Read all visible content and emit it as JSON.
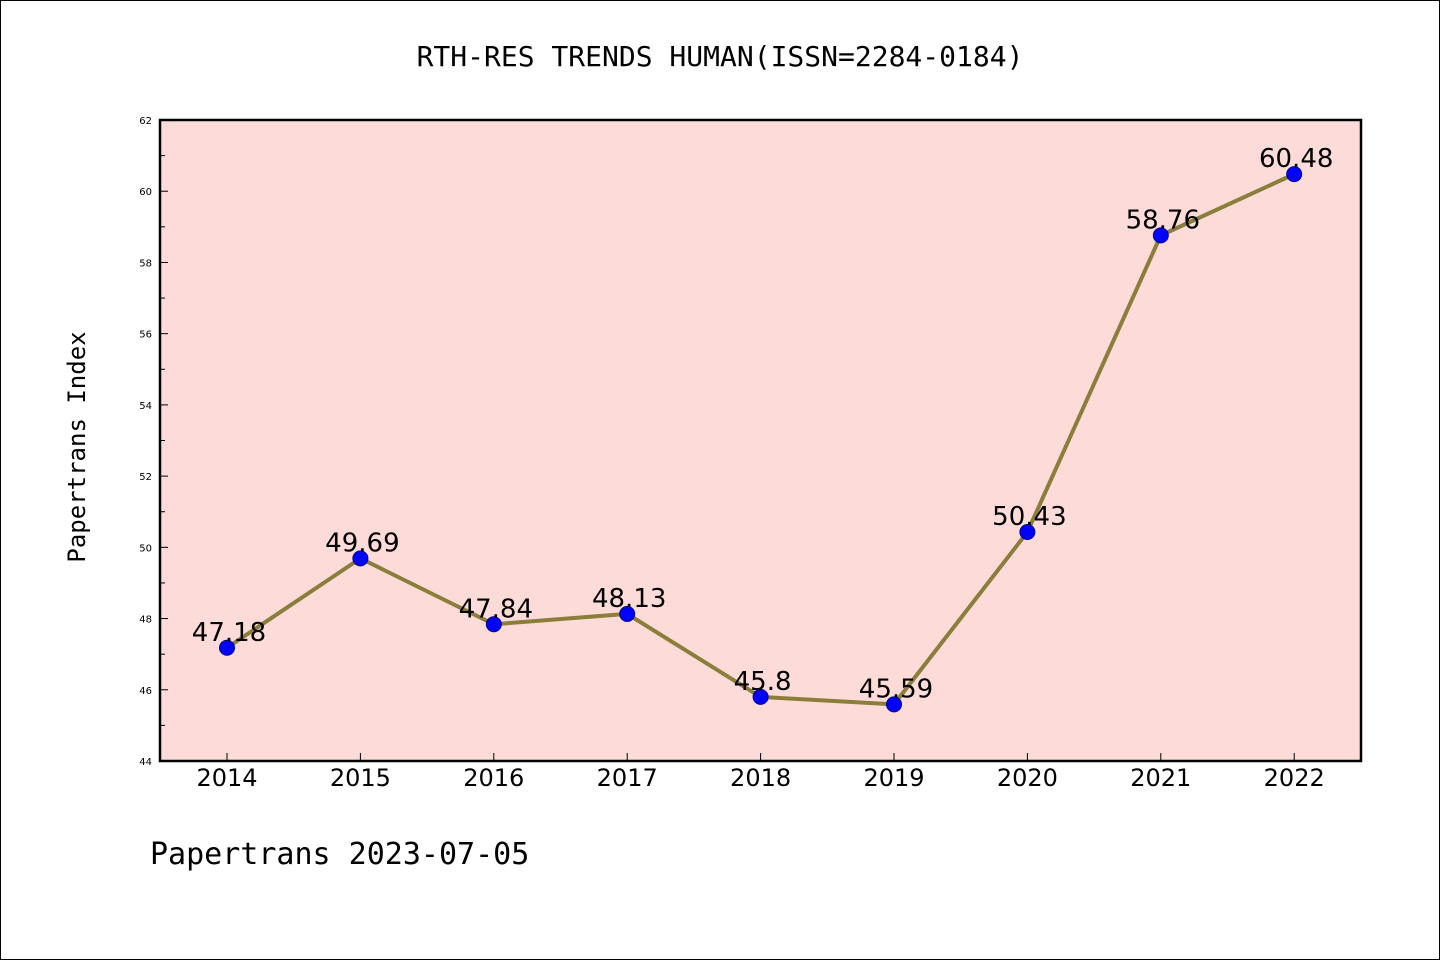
{
  "chart_data": {
    "type": "line",
    "title": "RTH-RES TRENDS HUMAN(ISSN=2284-0184)",
    "xlabel": "",
    "ylabel": "Papertrans Index",
    "categories": [
      "2014",
      "2015",
      "2016",
      "2017",
      "2018",
      "2019",
      "2020",
      "2021",
      "2022"
    ],
    "values": [
      47.18,
      49.69,
      47.84,
      48.13,
      45.8,
      45.59,
      50.43,
      58.76,
      60.48
    ],
    "data_labels": [
      "47.18",
      "49.69",
      "47.84",
      "48.13",
      "45.8",
      "45.59",
      "50.43",
      "58.76",
      "60.48"
    ],
    "ylim": [
      44,
      62
    ],
    "yticks": [
      44,
      46,
      48,
      50,
      52,
      54,
      56,
      58,
      60,
      62
    ],
    "grid": false,
    "legend": "none",
    "colors": {
      "plot_background": "#fddbd8",
      "line": "#8b7d3a",
      "marker": "#0000ff",
      "marker_edge": "#00008b"
    }
  },
  "footer": "Papertrans 2023-07-05"
}
